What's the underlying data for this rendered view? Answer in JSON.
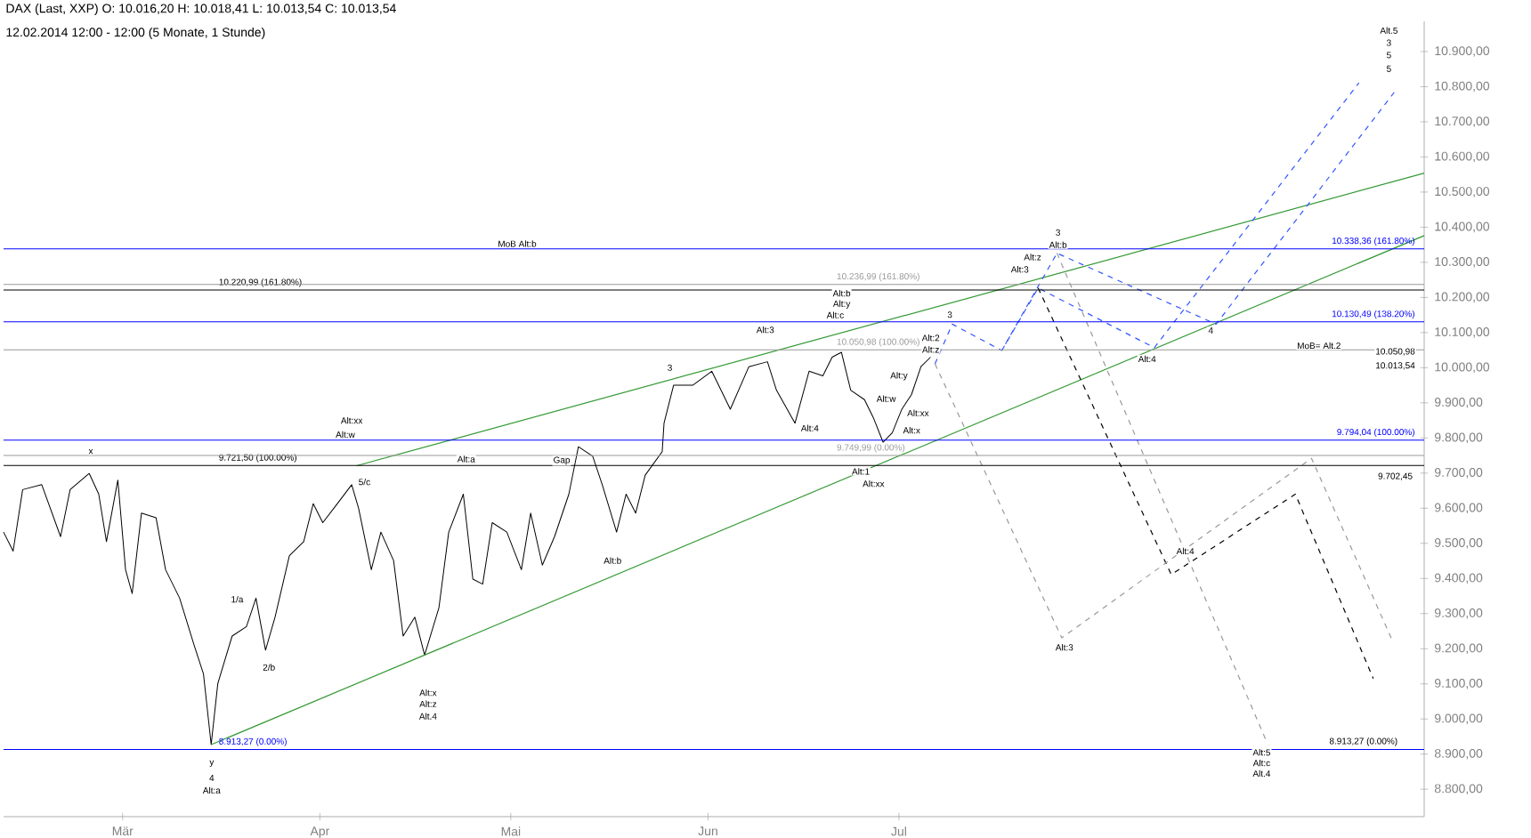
{
  "chart_data": {
    "type": "line",
    "title": "DAX (Last, XXP)  O: 10.016,20  H: 10.018,41  L: 10.013,54  C: 10.013,54",
    "subtitle": "12.02.2014 12:00 - 12:00 (5 Monate, 1 Stunde)",
    "xlim": [
      "2014-02-10T07:00",
      "2014-09-21T13:00"
    ],
    "ylim": [
      8722,
      10986
    ],
    "xticks": [
      {
        "value": "2014-03-01",
        "label": "Mär"
      },
      {
        "value": "2014-04-01",
        "label": "Apr"
      },
      {
        "value": "2014-05-01",
        "label": "Mai"
      },
      {
        "value": "2014-06-01",
        "label": "Jun"
      },
      {
        "value": "2014-07-01",
        "label": "Jul"
      }
    ],
    "yticks": [
      {
        "value": 8800,
        "label": "8.800,00"
      },
      {
        "value": 8900,
        "label": "8.900,00"
      },
      {
        "value": 9000,
        "label": "9.000,00"
      },
      {
        "value": 9100,
        "label": "9.100,00"
      },
      {
        "value": 9200,
        "label": "9.200,00"
      },
      {
        "value": 9300,
        "label": "9.300,00"
      },
      {
        "value": 9400,
        "label": "9.400,00"
      },
      {
        "value": 9500,
        "label": "9.500,00"
      },
      {
        "value": 9600,
        "label": "9.600,00"
      },
      {
        "value": 9700,
        "label": "9.700,00"
      },
      {
        "value": 9800,
        "label": "9.800,00"
      },
      {
        "value": 9900,
        "label": "9.900,00"
      },
      {
        "value": 10000,
        "label": "10.000,00"
      },
      {
        "value": 10100,
        "label": "10.100,00"
      },
      {
        "value": 10200,
        "label": "10.200,00"
      },
      {
        "value": 10300,
        "label": "10.300,00"
      },
      {
        "value": 10400,
        "label": "10.400,00"
      },
      {
        "value": 10500,
        "label": "10.500,00"
      },
      {
        "value": 10600,
        "label": "10.600,00"
      },
      {
        "value": 10700,
        "label": "10.700,00"
      },
      {
        "value": 10800,
        "label": "10.800,00"
      },
      {
        "value": 10900,
        "label": "10.900,00"
      }
    ],
    "series": [
      {
        "color": "#000000",
        "line_style": "solid",
        "x": [
          "2014-02-10T07:00",
          "2014-02-11T19:00",
          "2014-02-13T07:00",
          "2014-02-16T07:00",
          "2014-02-19T06:00",
          "2014-02-20T18:00",
          "2014-02-23T18:00",
          "2014-02-25T06:00",
          "2014-02-26T11:00",
          "2014-02-28T06:00",
          "2014-03-01T11:00",
          "2014-03-02T12:00",
          "2014-03-03T23:00",
          "2014-03-06T06:00",
          "2014-03-07T18:00",
          "2014-03-09T23:00",
          "2014-03-12T06:00",
          "2014-03-13T17:00",
          "2014-03-14T22:00",
          "2014-03-15T23:00",
          "2014-03-18T05:00",
          "2014-03-20T11:00",
          "2014-03-21T23:00",
          "2014-03-23T11:00",
          "2014-03-24T23:00",
          "2014-03-27T05:00",
          "2014-03-29T11:00",
          "2014-03-30T23:00",
          "2014-04-01T11:00",
          "2014-04-03T18:00",
          "2014-04-06T00:00",
          "2014-04-07T02:00",
          "2014-04-09T02:00",
          "2014-04-10T14:00",
          "2014-04-12T14:00",
          "2014-04-14T02:00",
          "2014-04-15T22:00",
          "2014-04-17T11:00",
          "2014-04-19T17:00",
          "2014-04-21T06:00",
          "2014-04-23T13:00",
          "2014-04-25T01:00",
          "2014-04-26T14:00",
          "2014-04-28T02:00",
          "2014-04-30T09:00",
          "2014-05-02T16:00",
          "2014-05-04T03:00",
          "2014-05-05T23:00",
          "2014-05-07T21:00",
          "2014-05-10T03:00",
          "2014-05-11T15:00",
          "2014-05-13T21:00",
          "2014-05-15T09:00",
          "2014-05-17T15:00",
          "2014-05-19T03:00",
          "2014-05-20T15:00",
          "2014-05-22T03:00",
          "2014-05-24T19:00",
          "2014-05-25T02:00",
          "2014-05-26T14:00",
          "2014-05-29T14:00",
          "2014-06-01T14:00",
          "2014-06-04T12:00",
          "2014-06-07T10:00",
          "2014-06-10T08:00",
          "2014-06-11T18:00",
          "2014-06-14T16:00",
          "2014-06-16T21:00",
          "2014-06-19T01:00",
          "2014-06-20T12:00",
          "2014-06-21T23:00",
          "2014-06-23T10:00",
          "2014-06-25T14:00",
          "2014-06-27T01:00",
          "2014-06-28T12:00",
          "2014-06-29T23:00",
          "2014-07-01T11:00",
          "2014-07-02T23:00",
          "2014-07-04T11:00",
          "2014-07-05T23:00"
        ],
        "values": [
          9532,
          9478,
          9653,
          9667,
          9519,
          9653,
          9699,
          9640,
          9505,
          9680,
          9425,
          9357,
          9586,
          9573,
          9425,
          9344,
          9209,
          9128,
          8927,
          9101,
          9236,
          9263,
          9344,
          9196,
          9290,
          9465,
          9505,
          9613,
          9559,
          9613,
          9667,
          9600,
          9425,
          9532,
          9451,
          9236,
          9290,
          9182,
          9317,
          9532,
          9640,
          9398,
          9384,
          9559,
          9532,
          9425,
          9586,
          9438,
          9519,
          9640,
          9775,
          9748,
          9667,
          9532,
          9640,
          9586,
          9694,
          9761,
          9842,
          9950,
          9950,
          9990,
          9882,
          10003,
          10017,
          9936,
          9842,
          9990,
          9977,
          10030,
          10044,
          9936,
          9909,
          9855,
          9788,
          9815,
          9882,
          9923,
          10003,
          10030
        ]
      },
      {
        "color": "#339933",
        "line_style": "solid",
        "x": [
          "2014-03-14T22:00",
          "2014-09-21T13:00"
        ],
        "values": [
          8927,
          10376
        ]
      },
      {
        "color": "#339933",
        "line_style": "solid",
        "x": [
          "2014-04-06T19:00",
          "2014-09-21T13:00"
        ],
        "values": [
          9721,
          10554
        ]
      },
      {
        "color": "#3355ff",
        "line_style": "dashed",
        "x": [
          "2014-07-06T16:00",
          "2014-07-09T09:00",
          "2014-07-17T04:00",
          "2014-07-25T20:00",
          "2014-08-19T20:00",
          "2014-09-16T20:00"
        ],
        "values": [
          10011,
          10124,
          10049,
          10326,
          10124,
          10784
        ]
      },
      {
        "color": "#3355ff",
        "line_style": "dashed",
        "x": [
          "2014-07-17T04:00",
          "2014-07-22T21:00",
          "2014-08-10T03:00",
          "2014-09-11T07:00"
        ],
        "values": [
          10049,
          10227,
          10057,
          10811
        ]
      },
      {
        "color": "#000000",
        "line_style": "dashed",
        "x": [
          "2014-07-22T21:00",
          "2014-08-12T19:00",
          "2014-09-01T07:00",
          "2014-09-13T13:00"
        ],
        "values": [
          10227,
          9411,
          9640,
          9115
        ]
      },
      {
        "color": "#999999",
        "line_style": "dashed",
        "x": [
          "2014-07-06T16:00",
          "2014-07-26T14:00",
          "2014-09-03T20:00",
          "2014-09-16T13:00"
        ],
        "values": [
          10011,
          9231,
          9742,
          9223
        ]
      },
      {
        "color": "#999999",
        "line_style": "dashed",
        "x": [
          "2014-07-25T20:00",
          "2014-08-27T19:00"
        ],
        "values": [
          10326,
          8935
        ]
      }
    ],
    "ref_lines": [
      {
        "axis": "y",
        "value": 10338.36,
        "label": "10.338,36 (161.80%)",
        "color": "#0000ff"
      },
      {
        "axis": "y",
        "value": 10220.99,
        "label": "10.220,99 (161.80%)",
        "color": "#000000"
      },
      {
        "axis": "y",
        "value": 10236.99,
        "label": "10.236,99 (161.80%)",
        "color": "#999999"
      },
      {
        "axis": "y",
        "value": 10130.49,
        "label": "10.130,49 (138.20%)",
        "color": "#0000ff"
      },
      {
        "axis": "y",
        "value": 9721.5,
        "label": "9.721,50 (100.00%)",
        "color": "#000000"
      },
      {
        "axis": "y",
        "value": 10050.98,
        "label": "10.050,98 (100.00%)",
        "color": "#999999"
      },
      {
        "axis": "y",
        "value": 9794.04,
        "label": "9.794,04 (100.00%)",
        "color": "#0000ff"
      },
      {
        "axis": "y",
        "value": 8913.27,
        "label": "8.913,27 (0.00%)",
        "color": "#0000ff"
      },
      {
        "axis": "y",
        "value": 9749.99,
        "label": "9.749,99 (0.00%)",
        "color": "#999999"
      }
    ],
    "annotations": [
      "x",
      "Alt:xx",
      "Alt:w",
      "5/c",
      "Alt:a",
      "Gap",
      "Alt:b",
      "1/a",
      "2/b",
      "Alt:x",
      "Alt:z",
      "Alt.4",
      "y",
      "4",
      "Alt:a",
      "3",
      "Alt:3",
      "Alt:b",
      "Alt:y",
      "Alt:c",
      "Alt:4",
      "Alt:w",
      "Alt:y",
      "Alt:xx",
      "Alt:x",
      "Alt:1",
      "Alt:xx",
      "Alt:2",
      "Alt:z",
      "MoB Alt:b",
      "MoB= Alt.2",
      "3",
      "Alt:3",
      "Alt:z",
      "Alt:b",
      "3",
      "Alt:4",
      "4",
      "Alt:4",
      "Alt:3",
      "Alt:5",
      "Alt:c",
      "Alt.4",
      "Alt.5",
      "3",
      "5",
      "5",
      "10.050,98",
      "10.013,54",
      "9.702,45",
      "8.913,27 (0.00%)"
    ]
  }
}
